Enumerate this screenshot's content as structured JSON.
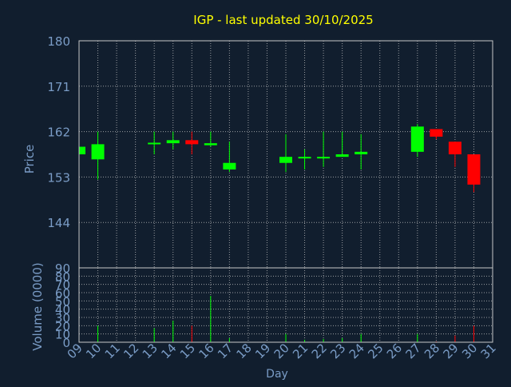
{
  "chart_data": {
    "type": "candlestick",
    "title": "IGP - last updated 30/10/2025",
    "price_panel": {
      "ylabel": "Price",
      "ylim": [
        135,
        180
      ],
      "yticks": [
        180,
        171,
        162,
        153,
        144
      ],
      "grid": true
    },
    "volume_panel": {
      "ylabel": "Volume (0000)",
      "ylim": [
        0,
        90
      ],
      "yticks": [
        90,
        80,
        70,
        60,
        50,
        40,
        30,
        20,
        10,
        0
      ],
      "grid": true
    },
    "xlabel": "Day",
    "x_categories": [
      "09",
      "10",
      "11",
      "12",
      "13",
      "14",
      "15",
      "16",
      "17",
      "18",
      "19",
      "20",
      "21",
      "22",
      "23",
      "24",
      "25",
      "26",
      "27",
      "28",
      "29",
      "30",
      "31"
    ],
    "colors": {
      "background": "#111e2e",
      "up": "#00ff00",
      "down": "#ff0000",
      "title": "#ffff00",
      "axis_text": "#7a9cc6",
      "grid": "#c8c8c8"
    },
    "candles": [
      {
        "day": "09",
        "open": 157.5,
        "close": 159.0,
        "high": 159.0,
        "low": 157.5,
        "volume": 0
      },
      {
        "day": "10",
        "open": 156.5,
        "close": 159.5,
        "high": 162.0,
        "low": 152.5,
        "volume": 20
      },
      {
        "day": "13",
        "open": 159.5,
        "close": 159.8,
        "high": 162.0,
        "low": 157.5,
        "volume": 17
      },
      {
        "day": "14",
        "open": 159.7,
        "close": 160.3,
        "high": 162.0,
        "low": 158.5,
        "volume": 26
      },
      {
        "day": "15",
        "open": 160.3,
        "close": 159.5,
        "high": 162.0,
        "low": 157.5,
        "volume": 20
      },
      {
        "day": "16",
        "open": 159.3,
        "close": 159.7,
        "high": 162.0,
        "low": 159.0,
        "volume": 56
      },
      {
        "day": "17",
        "open": 154.5,
        "close": 155.8,
        "high": 160.0,
        "low": 154.0,
        "volume": 5
      },
      {
        "day": "20",
        "open": 155.8,
        "close": 157.0,
        "high": 161.5,
        "low": 154.0,
        "volume": 10
      },
      {
        "day": "21",
        "open": 156.7,
        "close": 157.0,
        "high": 158.5,
        "low": 154.5,
        "volume": 3
      },
      {
        "day": "22",
        "open": 156.7,
        "close": 157.0,
        "high": 162.0,
        "low": 155.0,
        "volume": 4
      },
      {
        "day": "23",
        "open": 157.0,
        "close": 157.5,
        "high": 162.0,
        "low": 157.0,
        "volume": 5
      },
      {
        "day": "24",
        "open": 157.5,
        "close": 158.0,
        "high": 161.5,
        "low": 154.5,
        "volume": 10
      },
      {
        "day": "27",
        "open": 158.0,
        "close": 163.0,
        "high": 163.5,
        "low": 157.0,
        "volume": 10
      },
      {
        "day": "28",
        "open": 162.5,
        "close": 161.0,
        "high": 162.5,
        "low": 160.5,
        "volume": 1
      },
      {
        "day": "29",
        "open": 160.0,
        "close": 157.5,
        "high": 160.0,
        "low": 155.0,
        "volume": 8
      },
      {
        "day": "30",
        "open": 157.5,
        "close": 151.5,
        "high": 157.5,
        "low": 150.0,
        "volume": 20
      }
    ]
  }
}
